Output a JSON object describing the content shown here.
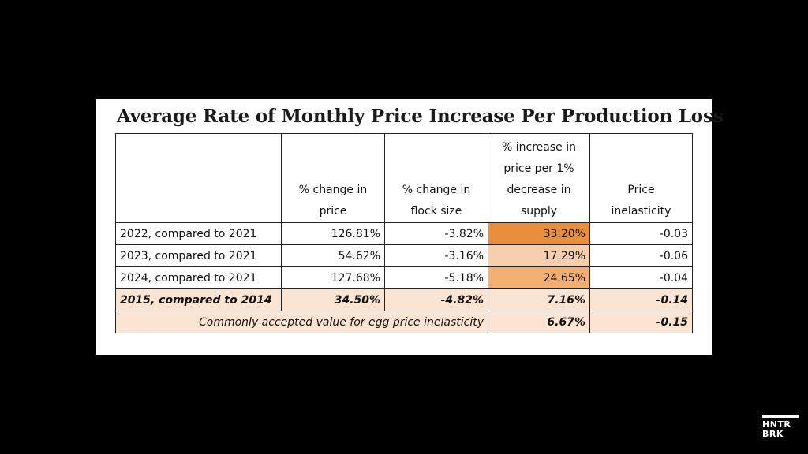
{
  "title": "Average Rate of Monthly Price Increase Per Production Loss",
  "headers": {
    "col1": "% change in price",
    "col2": "% change in flock size",
    "col3": "% increase in price per 1% decrease in supply",
    "col4": "Price inelasticity"
  },
  "rows": [
    {
      "label": "2022, compared to 2021",
      "price": "126.81%",
      "flock": "-3.82%",
      "per": "33.20%",
      "inel": "-0.03"
    },
    {
      "label": "2023, compared to 2021",
      "price": "54.62%",
      "flock": "-3.16%",
      "per": "17.29%",
      "inel": "-0.06"
    },
    {
      "label": "2024, compared to 2021",
      "price": "127.68%",
      "flock": "-5.18%",
      "per": "24.65%",
      "inel": "-0.04"
    },
    {
      "label": "2015, compared to 2014",
      "price": "34.50%",
      "flock": "-4.82%",
      "per": "7.16%",
      "inel": "-0.14"
    }
  ],
  "footer": {
    "label": "Commonly accepted value for egg price inelasticity",
    "per": "6.67%",
    "inel": "-0.15"
  },
  "logo": {
    "line1": "HNTR",
    "line2": "BRK"
  },
  "colors": {
    "highlight_strong": "#e98e3a",
    "highlight_mid": "#f3ae72",
    "highlight_light": "#f7cfae",
    "peach_row": "#fce4d2"
  }
}
